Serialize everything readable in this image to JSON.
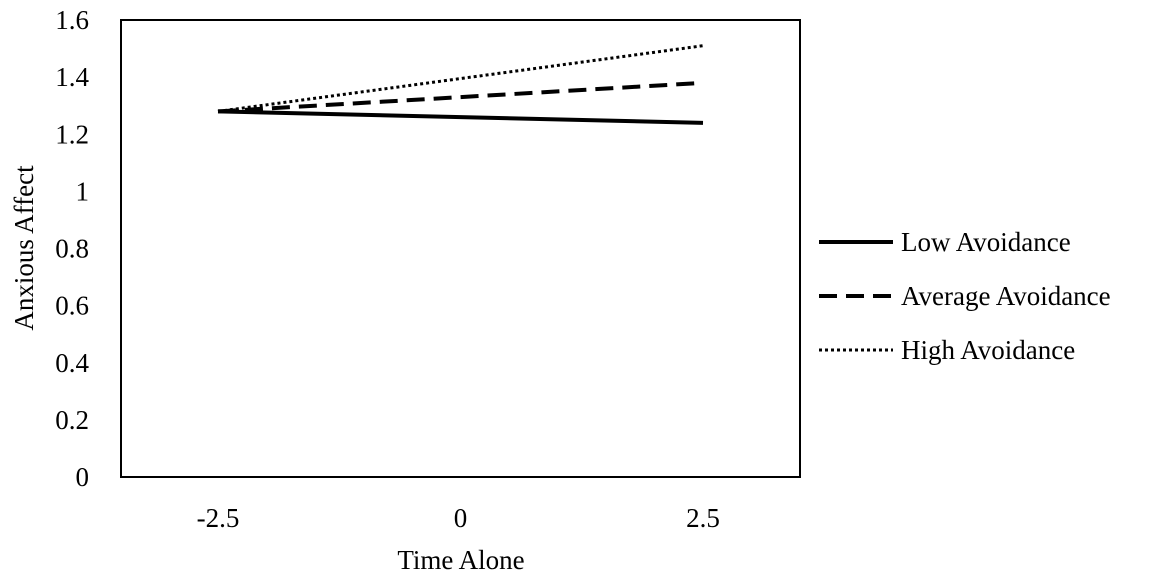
{
  "chart_data": {
    "type": "line",
    "title": "",
    "xlabel": "Time Alone",
    "ylabel": "Anxious Affect",
    "x": [
      -2.5,
      2.5
    ],
    "xticks": [
      -2.5,
      0,
      2.5
    ],
    "xtick_labels": [
      "-2.5",
      "0",
      "2.5"
    ],
    "xlim": [
      -3.5,
      3.5
    ],
    "ylim": [
      0,
      1.6
    ],
    "yticks": [
      0,
      0.2,
      0.4,
      0.6,
      0.8,
      1,
      1.2,
      1.4,
      1.6
    ],
    "ytick_labels": [
      "0",
      "0.2",
      "0.4",
      "0.6",
      "0.8",
      "1",
      "1.2",
      "1.4",
      "1.6"
    ],
    "grid": false,
    "legend_position": "right",
    "series": [
      {
        "name": "Low Avoidance",
        "values": [
          1.28,
          1.24
        ],
        "style": "solid",
        "color": "#000000"
      },
      {
        "name": "Average Avoidance",
        "values": [
          1.28,
          1.38
        ],
        "style": "dashed",
        "color": "#000000"
      },
      {
        "name": "High Avoidance",
        "values": [
          1.28,
          1.51
        ],
        "style": "dotted",
        "color": "#000000"
      }
    ]
  }
}
